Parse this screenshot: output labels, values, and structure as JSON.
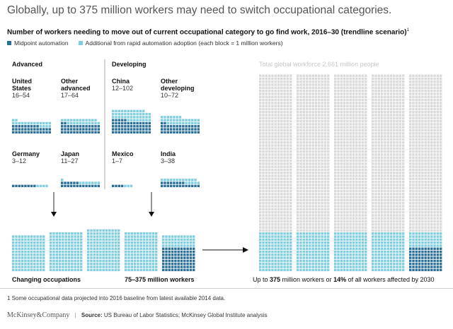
{
  "title": "Globally, up to 375 million workers may need to switch occupational categories.",
  "subtitle": "Number of workers needing to move out of current occupational category to go find work, 2016–30 (trendline scenario)",
  "subtitle_sup": "1",
  "legend": {
    "midpoint": "Midpoint automation",
    "additional": "Additional from rapid automation adoption (each block = 1 million workers)"
  },
  "colors": {
    "midpoint": "#2a6f97",
    "additional": "#7fcde0",
    "workforce": "#d9d9d9"
  },
  "groups": {
    "advanced": "Advanced",
    "developing": "Developing"
  },
  "regions": [
    {
      "name_lines": [
        "United",
        "States"
      ],
      "range": "16–54"
    },
    {
      "name_lines": [
        "Other",
        "advanced"
      ],
      "range": "17–64"
    },
    {
      "name_lines": [
        "China"
      ],
      "range": "12–102"
    },
    {
      "name_lines": [
        "Other",
        "developing"
      ],
      "range": "10–72"
    },
    {
      "name_lines": [
        "Germany"
      ],
      "range": "3–12"
    },
    {
      "name_lines": [
        "Japan"
      ],
      "range": "11–27"
    },
    {
      "name_lines": [
        "Mexico"
      ],
      "range": "1–7"
    },
    {
      "name_lines": [
        "India"
      ],
      "range": "3–38"
    }
  ],
  "chart_data": {
    "type": "waffle",
    "unit": "each block = 1 million workers",
    "series": [
      {
        "name": "Midpoint automation",
        "values": [
          35,
          41,
          57,
          41,
          8,
          19,
          4,
          21
        ]
      },
      {
        "name": "Additional from rapid automation adoption",
        "values": [
          19,
          23,
          45,
          31,
          4,
          8,
          3,
          17
        ]
      }
    ],
    "categories": [
      "United States",
      "Other advanced",
      "China",
      "Other developing",
      "Germany",
      "Japan",
      "Mexico",
      "India"
    ],
    "total_workforce_millions": 2661
  },
  "changing_label": "Changing occupations",
  "total_label": "75–375 million workers",
  "workforce_label": "Total global workforce 2,661 million people",
  "bottom_note": {
    "prefix": "Up to ",
    "n1": "375",
    "middle": " million workers or ",
    "n2": "14%",
    "suffix": " of all workers affected by 2030"
  },
  "footnote": "1 Some occupational data projected into 2016 baseline from latest available 2014 data.",
  "brand": "McKinsey&Company",
  "source_label": "Source:",
  "source_text": " US Bureau of Labor Statistics; McKinsey Global Institute analysis"
}
